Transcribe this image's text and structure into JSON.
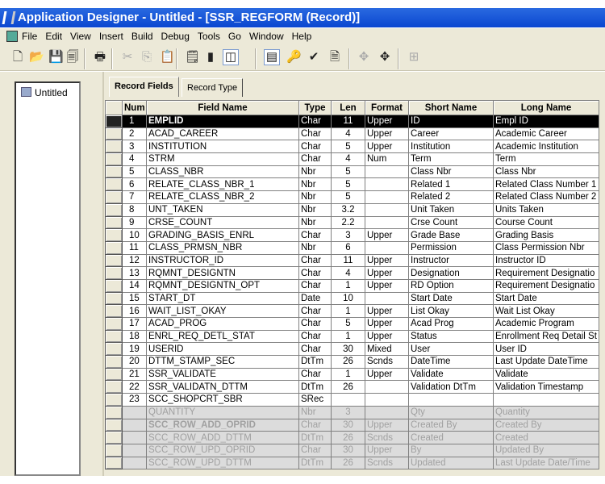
{
  "window": {
    "title": "Application Designer - Untitled - [SSR_REGFORM (Record)]"
  },
  "menu": [
    "File",
    "Edit",
    "View",
    "Insert",
    "Build",
    "Debug",
    "Tools",
    "Go",
    "Window",
    "Help"
  ],
  "toolbar": [
    {
      "name": "new-icon",
      "glyph": "🗋",
      "disabled": false
    },
    {
      "name": "open-icon",
      "glyph": "📂",
      "disabled": false
    },
    {
      "name": "save-icon",
      "glyph": "💾",
      "disabled": true
    },
    {
      "name": "save-all-icon",
      "glyph": "🗐",
      "disabled": false
    },
    {
      "name": "print-icon",
      "glyph": "🖶",
      "disabled": false
    },
    {
      "name": "cut-icon",
      "glyph": "✂",
      "disabled": true
    },
    {
      "name": "copy-icon",
      "glyph": "⎘",
      "disabled": true
    },
    {
      "name": "paste-icon",
      "glyph": "📋",
      "disabled": true
    },
    {
      "name": "definition-properties-icon",
      "glyph": "🗒",
      "disabled": false
    },
    {
      "name": "object-icon",
      "glyph": "▮",
      "disabled": false
    },
    {
      "name": "project-workspace-icon",
      "glyph": "◫",
      "disabled": false,
      "pressed": true
    },
    {
      "name": "field-display-icon",
      "glyph": "▤",
      "disabled": false,
      "pressed": true
    },
    {
      "name": "use-display-icon",
      "glyph": "🔑",
      "disabled": false
    },
    {
      "name": "edits-display-icon",
      "glyph": "✔",
      "disabled": false
    },
    {
      "name": "pc-display-icon",
      "glyph": "🗎",
      "disabled": false
    },
    {
      "name": "expand-all-icon",
      "glyph": "✥",
      "disabled": true
    },
    {
      "name": "collapse-all-icon",
      "glyph": "✥",
      "disabled": false
    },
    {
      "name": "insert-into-project-icon",
      "glyph": "⊞",
      "disabled": true
    }
  ],
  "tree": {
    "root": "Untitled"
  },
  "tabs": [
    {
      "label": "Record Fields",
      "active": true
    },
    {
      "label": "Record Type",
      "active": false
    }
  ],
  "grid": {
    "columns": [
      "Num",
      "Field Name",
      "Type",
      "Len",
      "Format",
      "Short Name",
      "Long Name"
    ],
    "selected_row": 1,
    "rows": [
      [
        "1",
        "EMPLID",
        "Char",
        "11",
        "Upper",
        "ID",
        "Empl ID"
      ],
      [
        "2",
        "ACAD_CAREER",
        "Char",
        "4",
        "Upper",
        "Career",
        "Academic Career"
      ],
      [
        "3",
        "INSTITUTION",
        "Char",
        "5",
        "Upper",
        "Institution",
        "Academic Institution"
      ],
      [
        "4",
        "STRM",
        "Char",
        "4",
        "Num",
        "Term",
        "Term"
      ],
      [
        "5",
        "CLASS_NBR",
        "Nbr",
        "5",
        "",
        "Class Nbr",
        "Class Nbr"
      ],
      [
        "6",
        "RELATE_CLASS_NBR_1",
        "Nbr",
        "5",
        "",
        "Related 1",
        "Related Class Number 1"
      ],
      [
        "7",
        "RELATE_CLASS_NBR_2",
        "Nbr",
        "5",
        "",
        "Related 2",
        "Related Class Number 2"
      ],
      [
        "8",
        "UNT_TAKEN",
        "Nbr",
        "3.2",
        "",
        "Unit Taken",
        "Units Taken"
      ],
      [
        "9",
        "CRSE_COUNT",
        "Nbr",
        "2.2",
        "",
        "Crse Count",
        "Course Count"
      ],
      [
        "10",
        "GRADING_BASIS_ENRL",
        "Char",
        "3",
        "Upper",
        "Grade Base",
        "Grading Basis"
      ],
      [
        "11",
        "CLASS_PRMSN_NBR",
        "Nbr",
        "6",
        "",
        "Permission",
        "Class Permission Nbr"
      ],
      [
        "12",
        "INSTRUCTOR_ID",
        "Char",
        "11",
        "Upper",
        "Instructor",
        "Instructor ID"
      ],
      [
        "13",
        "RQMNT_DESIGNTN",
        "Char",
        "4",
        "Upper",
        "Designation",
        "Requirement Designatio"
      ],
      [
        "14",
        "RQMNT_DESIGNTN_OPT",
        "Char",
        "1",
        "Upper",
        "RD Option",
        "Requirement Designatio"
      ],
      [
        "15",
        "START_DT",
        "Date",
        "10",
        "",
        "Start Date",
        "Start Date"
      ],
      [
        "16",
        "WAIT_LIST_OKAY",
        "Char",
        "1",
        "Upper",
        "List Okay",
        "Wait List Okay"
      ],
      [
        "17",
        "ACAD_PROG",
        "Char",
        "5",
        "Upper",
        "Acad Prog",
        "Academic Program"
      ],
      [
        "18",
        "ENRL_REQ_DETL_STAT",
        "Char",
        "1",
        "Upper",
        "Status",
        "Enrollment Req Detail St"
      ],
      [
        "19",
        "USERID",
        "Char",
        "30",
        "Mixed",
        "User",
        "User ID"
      ],
      [
        "20",
        "DTTM_STAMP_SEC",
        "DtTm",
        "26",
        "Scnds",
        "DateTime",
        "Last Update DateTime"
      ],
      [
        "21",
        "SSR_VALIDATE",
        "Char",
        "1",
        "Upper",
        "Validate",
        "Validate"
      ],
      [
        "22",
        "SSR_VALIDATN_DTTM",
        "DtTm",
        "26",
        "",
        "Validation DtTm",
        "Validation Timestamp"
      ],
      [
        "23",
        "SCC_SHOPCRT_SBR",
        "SRec",
        "",
        "",
        "",
        ""
      ]
    ],
    "subrecord_rows": [
      [
        "",
        "QUANTITY",
        "Nbr",
        "3",
        "",
        "Qty",
        "Quantity"
      ],
      [
        "",
        "SCC_ROW_ADD_OPRID",
        "Char",
        "30",
        "Upper",
        "Created By",
        "Created By"
      ],
      [
        "",
        "SCC_ROW_ADD_DTTM",
        "DtTm",
        "26",
        "Scnds",
        "Created",
        "Created"
      ],
      [
        "",
        "SCC_ROW_UPD_OPRID",
        "Char",
        "30",
        "Upper",
        "By",
        "Updated By"
      ],
      [
        "",
        "SCC_ROW_UPD_DTTM",
        "DtTm",
        "26",
        "Scnds",
        "Updated",
        "Last Update Date/Time"
      ]
    ]
  }
}
